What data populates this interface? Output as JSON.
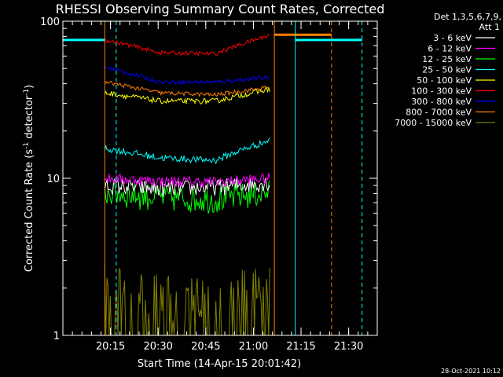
{
  "chart_data": {
    "type": "line",
    "title": "RHESSI Observing Summary Count Rates, Corrected",
    "xlabel": "Start Time (14-Apr-15 20:01:42)",
    "ylabel_main": "Corrected Count Rate (s",
    "ylabel_sup1": "-1",
    "ylabel_mid": " detector",
    "ylabel_sup2": "-1",
    "ylabel_end": ")",
    "y_scale": "log",
    "ylim": [
      1,
      100
    ],
    "y_ticks": [
      {
        "value": 1,
        "label": "1"
      },
      {
        "value": 10,
        "label": "10"
      },
      {
        "value": 100,
        "label": "100"
      }
    ],
    "xlim_minutes": [
      20.0,
      21.65
    ],
    "x_ticks": [
      {
        "minute": 20.25,
        "label": "20:15"
      },
      {
        "minute": 20.5,
        "label": "20:30"
      },
      {
        "minute": 20.75,
        "label": "20:45"
      },
      {
        "minute": 21.0,
        "label": "21:00"
      },
      {
        "minute": 21.25,
        "label": "21:15"
      },
      {
        "minute": 21.5,
        "label": "21:30"
      }
    ],
    "legend_header": [
      "Det 1,3,5,6,7,9,",
      "Att 1"
    ],
    "legend_placement": "top-right",
    "series": [
      {
        "name": "3 - 6 keV",
        "color": "#ffffff",
        "level": [
          9.0,
          8.6,
          8.8,
          9.4
        ],
        "noise": 0.12
      },
      {
        "name": "6 - 12 keV",
        "color": "#ff00ff",
        "level": [
          10.0,
          9.6,
          9.5,
          10.0
        ],
        "noise": 0.08
      },
      {
        "name": "12 - 25 keV",
        "color": "#00ff00",
        "level": [
          8.2,
          7.6,
          7.4,
          8.2
        ],
        "noise": 0.2
      },
      {
        "name": "25 - 50 keV",
        "color": "#00ffff",
        "level": [
          15.5,
          13.5,
          13.0,
          17.5
        ],
        "noise": 0.05
      },
      {
        "name": "50 - 100 keV",
        "color": "#ffff00",
        "level": [
          35,
          31,
          31,
          37
        ],
        "noise": 0.04
      },
      {
        "name": "100 - 300 keV",
        "color": "#ff0000",
        "level": [
          76,
          63,
          62,
          82
        ],
        "noise": 0.03
      },
      {
        "name": "300 - 800 keV",
        "color": "#0000ff",
        "level": [
          51,
          41,
          41,
          44
        ],
        "noise": 0.03
      },
      {
        "name": "800 - 7000 keV",
        "color": "#ff8000",
        "level": [
          41,
          35,
          34,
          38
        ],
        "noise": 0.03
      },
      {
        "name": "7000 - 15000 keV",
        "color": "#808000",
        "level": [
          2.0,
          1.6,
          1.6,
          2.0
        ],
        "noise": 0.45
      }
    ],
    "data_start_minute": 20.22,
    "data_end_minute": 21.09,
    "saa_bar": {
      "color": "#00ffff",
      "value": 76,
      "segments": [
        [
          20.0,
          20.22
        ],
        [
          21.22,
          21.57
        ]
      ]
    },
    "orange_bar": {
      "color": "#ff8000",
      "value": 82,
      "segments": [
        [
          21.11,
          21.41
        ]
      ]
    },
    "vertical_lines": [
      {
        "minute": 20.0,
        "color": "#00ffff",
        "dash": false
      },
      {
        "minute": 20.22,
        "color": "#ff8000",
        "dash": false
      },
      {
        "minute": 20.28,
        "color": "#00ffff",
        "dash": true
      },
      {
        "minute": 21.11,
        "color": "#ff8000",
        "dash": false
      },
      {
        "minute": 21.22,
        "color": "#00ffff",
        "dash": false
      },
      {
        "minute": 21.41,
        "color": "#ff8000",
        "dash": true
      },
      {
        "minute": 21.57,
        "color": "#00ffff",
        "dash": true
      }
    ]
  },
  "footer": {
    "timestamp": "28-Oct-2021 10:12"
  }
}
